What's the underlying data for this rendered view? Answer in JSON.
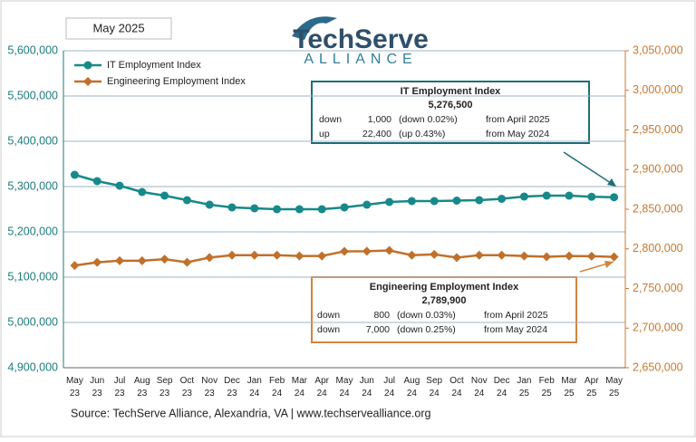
{
  "chart_data": {
    "type": "line",
    "date_label": "May 2025",
    "logo": {
      "name": "TechServe",
      "tagline": "ALLIANCE"
    },
    "categories": [
      "May 23",
      "Jun 23",
      "Jul 23",
      "Aug 23",
      "Sep 23",
      "Oct 23",
      "Nov 23",
      "Dec 23",
      "Jan 24",
      "Feb 24",
      "Mar 24",
      "Apr 24",
      "May 24",
      "Jun 24",
      "Jul 24",
      "Aug 24",
      "Sep 24",
      "Oct 24",
      "Nov 24",
      "Dec 24",
      "Jan 25",
      "Feb 25",
      "Mar 25",
      "Apr 25",
      "May 25"
    ],
    "series": [
      {
        "name": "IT Employment Index",
        "color": "#17898a",
        "marker": "circle",
        "values": [
          5326000,
          5312000,
          5302000,
          5288000,
          5280000,
          5270000,
          5260000,
          5254000,
          5252000,
          5250000,
          5250000,
          5250000,
          5254100,
          5260000,
          5266000,
          5268000,
          5268000,
          5269000,
          5270000,
          5273000,
          5278000,
          5280000,
          5280000,
          5277500,
          5276500
        ]
      },
      {
        "name": "Engineering Employment Index",
        "color": "#c0702a",
        "marker": "diamond",
        "axis": "y2",
        "values": [
          2779000,
          2783000,
          2785000,
          2785000,
          2787000,
          2783000,
          2789000,
          2792000,
          2792000,
          2792000,
          2791000,
          2791000,
          2796900,
          2797000,
          2798000,
          2792000,
          2793000,
          2789000,
          2792000,
          2792000,
          2791000,
          2790000,
          2791000,
          2790700,
          2789900
        ]
      }
    ],
    "ylim": [
      4900000,
      5600000
    ],
    "yticks": [
      {
        "value": 4900000,
        "label": "4,900,000"
      },
      {
        "value": 5000000,
        "label": "5,000,000"
      },
      {
        "value": 5100000,
        "label": "5,100,000"
      },
      {
        "value": 5200000,
        "label": "5,200,000"
      },
      {
        "value": 5300000,
        "label": "5,300,000"
      },
      {
        "value": 5400000,
        "label": "5,400,000"
      },
      {
        "value": 5500000,
        "label": "5,500,000"
      },
      {
        "value": 5600000,
        "label": "5,600,000"
      }
    ],
    "y2lim": [
      2650000,
      3050000
    ],
    "y2ticks": [
      {
        "value": 2650000,
        "label": "2,650,000"
      },
      {
        "value": 2700000,
        "label": "2,700,000"
      },
      {
        "value": 2750000,
        "label": "2,750,000"
      },
      {
        "value": 2800000,
        "label": "2,800,000"
      },
      {
        "value": 2850000,
        "label": "2,850,000"
      },
      {
        "value": 2900000,
        "label": "2,900,000"
      },
      {
        "value": 2950000,
        "label": "2,950,000"
      },
      {
        "value": 3000000,
        "label": "3,000,000"
      },
      {
        "value": 3050000,
        "label": "3,050,000"
      }
    ],
    "grid": true,
    "legend": "top-left",
    "annotations": [
      {
        "title": "IT Employment Index",
        "value": "5,276,500",
        "rows": [
          [
            "down",
            "1,000",
            "(down 0.02%)",
            "from April 2025"
          ],
          [
            "up",
            "22,400",
            "(up 0.43%)",
            "from May 2024"
          ]
        ]
      },
      {
        "title": "Engineering Employment Index",
        "value": "2,789,900",
        "rows": [
          [
            "down",
            "800",
            "(down 0.03%)",
            "from  April 2025"
          ],
          [
            "down",
            "7,000",
            "(down 0.25%)",
            "from  May 2024"
          ]
        ]
      }
    ],
    "source": "Source: TechServe Alliance, Alexandria, VA | www.techservealliance.org"
  }
}
